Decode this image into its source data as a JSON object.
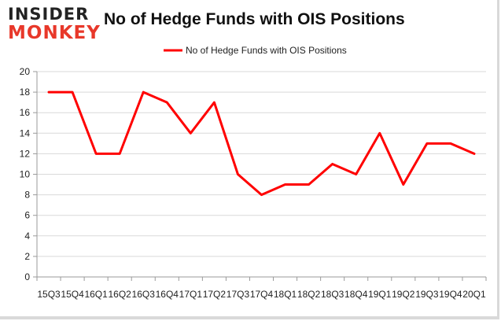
{
  "logo": {
    "line1": "INSIDER",
    "line2": "MONKEY"
  },
  "chart_data": {
    "type": "line",
    "title": "No of Hedge Funds with OIS Positions",
    "xlabel": "",
    "ylabel": "",
    "ylim": [
      0,
      20
    ],
    "yticks": [
      0,
      2,
      4,
      6,
      8,
      10,
      12,
      14,
      16,
      18,
      20
    ],
    "grid": true,
    "legend_position": "top-center",
    "categories": [
      "15Q3",
      "15Q4",
      "16Q1",
      "16Q2",
      "16Q3",
      "16Q4",
      "17Q1",
      "17Q2",
      "17Q3",
      "17Q4",
      "18Q1",
      "18Q2",
      "18Q3",
      "18Q4",
      "19Q1",
      "19Q2",
      "19Q3",
      "19Q4",
      "20Q1"
    ],
    "series": [
      {
        "name": "No of Hedge Funds with OIS Positions",
        "color": "#ff0000",
        "values": [
          18,
          18,
          12,
          12,
          18,
          17,
          14,
          17,
          10,
          8,
          9,
          9,
          11,
          10,
          14,
          9,
          13,
          13,
          12
        ]
      }
    ]
  }
}
